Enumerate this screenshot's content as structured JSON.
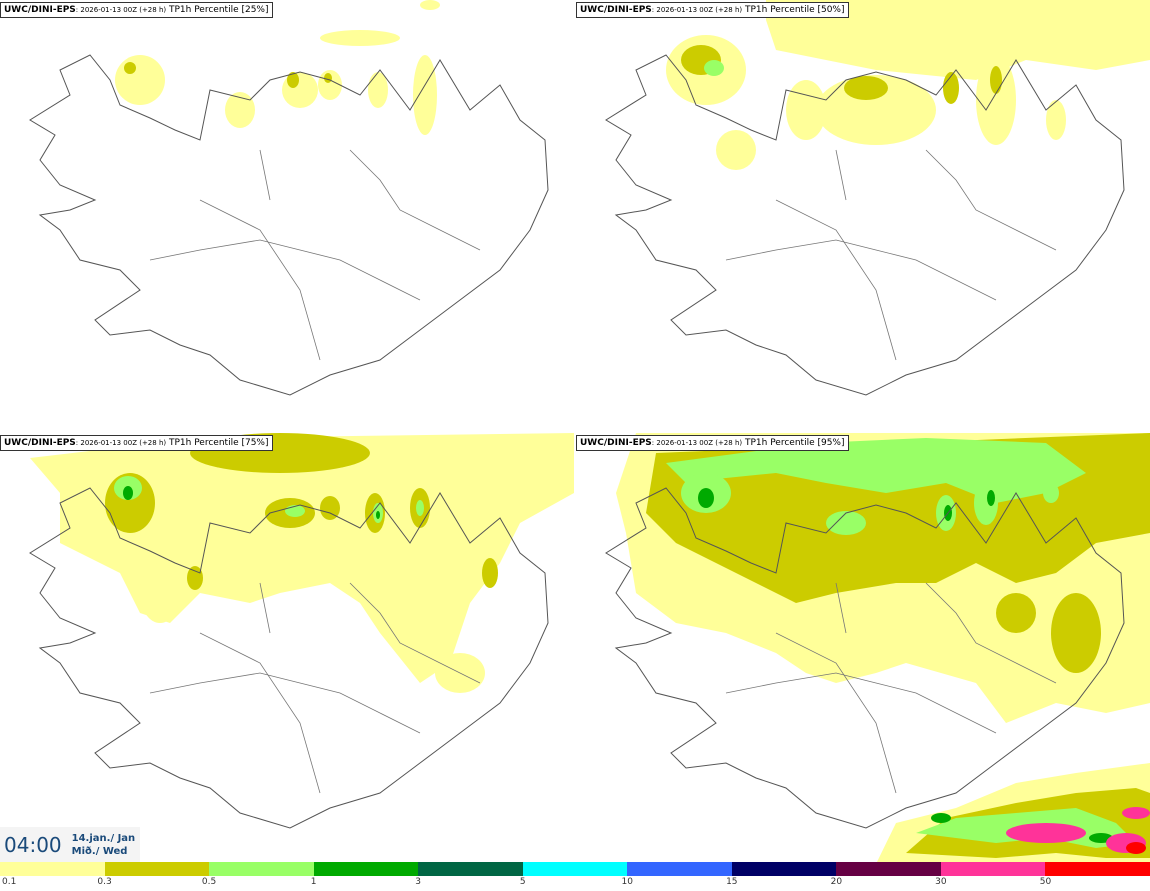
{
  "panels": [
    {
      "title_main": "UWC/DINI-EPS",
      "title_run": ": 2026-01-13 00Z (+28 h)",
      "title_field": " TP1h Percentile [25%]"
    },
    {
      "title_main": "UWC/DINI-EPS",
      "title_run": ": 2026-01-13 00Z (+28 h)",
      "title_field": " TP1h Percentile [50%]"
    },
    {
      "title_main": "UWC/DINI-EPS",
      "title_run": ": 2026-01-13 00Z (+28 h)",
      "title_field": " TP1h Percentile [75%]"
    },
    {
      "title_main": "UWC/DINI-EPS",
      "title_run": ": 2026-01-13 00Z (+28 h)",
      "title_field": " TP1h Percentile [95%]"
    }
  ],
  "time": {
    "clock": "04:00",
    "date_line1": "14.jan./ Jan",
    "date_line2": "Mið./ Wed"
  },
  "legend": {
    "labels": [
      "0.1",
      "0.3",
      "0.5",
      "1",
      "3",
      "5",
      "10",
      "15",
      "20",
      "30",
      "50"
    ],
    "colors": [
      "#ffff99",
      "#cccc00",
      "#99ff66",
      "#00aa00",
      "#006644",
      "#00ffff",
      "#3366ff",
      "#000066",
      "#660044",
      "#ff3399",
      "#ff0000"
    ]
  }
}
